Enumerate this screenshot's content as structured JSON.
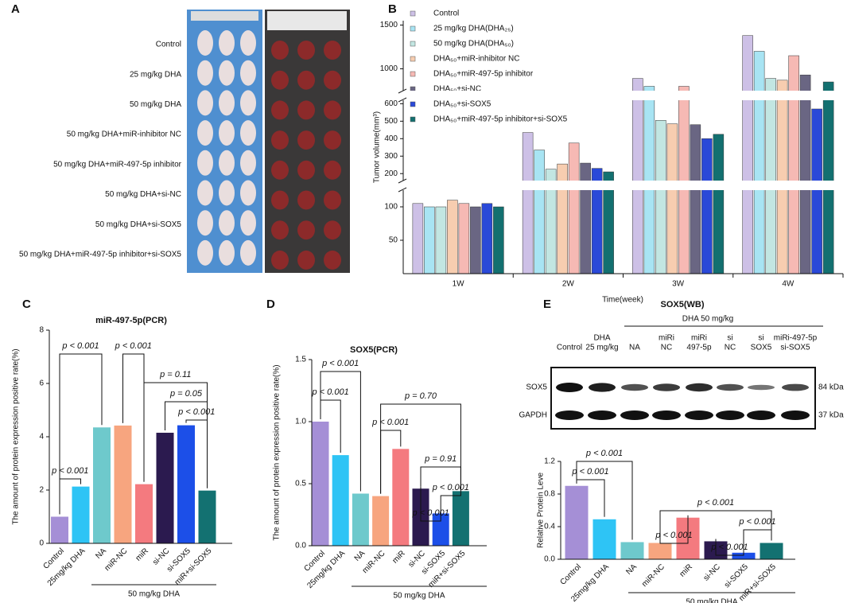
{
  "panel_labels": [
    "A",
    "B",
    "C",
    "D",
    "E"
  ],
  "photo": {
    "rows": [
      "Control",
      "25 mg/kg DHA",
      "50 mg/kg DHA",
      "50 mg/kg DHA+miR-inhibitor NC",
      "50 mg/kg DHA+miR-497-5p inhibitor",
      "50 mg/kg DHA+si-NC",
      "50 mg/kg DHA+si-SOX5",
      "50 mg/kg DHA+miR-497-5p inhibitor+si-SOX5"
    ]
  },
  "chart_data": [
    {
      "type": "grouped_bar",
      "categories": [
        "1W",
        "2W",
        "3W",
        "4W"
      ],
      "xlabel": "Time(week)",
      "ylabel": "Tumor volume(mm³)",
      "ylim": [
        0,
        1550
      ],
      "ylim_segments": [
        [
          0,
          125
        ],
        [
          160,
          620
        ],
        [
          750,
          1550
        ]
      ],
      "yticks": [
        50,
        100,
        200,
        300,
        400,
        500,
        600,
        1000,
        1500
      ],
      "series": [
        {
          "name": "Control",
          "color": "#cdc0e6",
          "values": [
            105,
            435,
            890,
            1380
          ]
        },
        {
          "name": "25 mg/kg DHA(DHA₂₅)",
          "color": "#a8e4f3",
          "values": [
            100,
            335,
            800,
            1200
          ]
        },
        {
          "name": "50 mg/kg DHA(DHA₅₀)",
          "color": "#c2e6e2",
          "values": [
            100,
            225,
            505,
            890
          ]
        },
        {
          "name": "DHA₅₀+miR-inhibitor NC",
          "color": "#f7cdb0",
          "values": [
            110,
            255,
            485,
            870
          ]
        },
        {
          "name": "DHA₅₀+miR-497-5p inhibitor",
          "color": "#f6b9b4",
          "values": [
            105,
            375,
            800,
            1150
          ]
        },
        {
          "name": "DHA₅₀+si-NC",
          "color": "#6a6683",
          "values": [
            100,
            260,
            480,
            930
          ]
        },
        {
          "name": "DHA₅₀+si-SOX5",
          "color": "#2a49d8",
          "values": [
            105,
            230,
            400,
            570
          ]
        },
        {
          "name": "DHA₅₀+miR-497-5p inhibitor+si-SOX5",
          "color": "#137070",
          "values": [
            100,
            210,
            425,
            850
          ]
        }
      ]
    },
    {
      "type": "bar",
      "title": "miR-497-5p(PCR)",
      "ylabel": "The amount of protein expression positive rate(%)",
      "categories": [
        "Control",
        "25mg/kg DHA",
        "NA",
        "miR-NC",
        "miR",
        "si-NC",
        "si-SOX5",
        "miR+si-SOX5"
      ],
      "group_label": "50 mg/kg DHA",
      "colors": [
        "#a58fd6",
        "#2ec4f5",
        "#6ec9cc",
        "#f7a57f",
        "#f47a7f",
        "#2b1a4f",
        "#1c4fe8",
        "#137171"
      ],
      "values": [
        1.0,
        2.13,
        4.35,
        4.42,
        2.22,
        4.15,
        4.43,
        1.98
      ],
      "ylim": [
        0,
        8
      ],
      "yticks": [
        0,
        2,
        4,
        6,
        8
      ],
      "annotations": [
        "p < 0.001",
        "p < 0.001",
        "p < 0.001",
        "p = 0.11",
        "p = 0.05",
        "p < 0.001"
      ]
    },
    {
      "type": "bar",
      "title": "SOX5(PCR)",
      "ylabel": "The amount of protein expression positive rate(%)",
      "categories": [
        "Control",
        "25mg/kg DHA",
        "NA",
        "miR-NC",
        "miR",
        "si-NC",
        "si-SOX5",
        "miR+si-SOX5"
      ],
      "group_label": "50 mg/kg DHA",
      "colors": [
        "#a58fd6",
        "#2ec4f5",
        "#6ec9cc",
        "#f7a57f",
        "#f47a7f",
        "#2b1a4f",
        "#1c4fe8",
        "#137171"
      ],
      "values": [
        1.0,
        0.73,
        0.42,
        0.4,
        0.78,
        0.46,
        0.26,
        0.44
      ],
      "ylim": [
        0,
        1.5
      ],
      "yticks": [
        {
          "value": 0,
          "label": "0.0"
        },
        0.5,
        {
          "value": 1,
          "label": "1.0"
        },
        1.5
      ],
      "annotations": [
        "p < 0.001",
        "p < 0.001",
        "p = 0.70",
        "p < 0.001",
        "p = 0.91",
        "p < 0.001",
        "p < 0.001"
      ]
    },
    {
      "type": "bar",
      "ylabel": "Relative Protein Leve",
      "categories": [
        "Control",
        "25mg/kg DHA",
        "NA",
        "miR-NC",
        "miR",
        "si-NC",
        "si-SOX5",
        "miR+si-SOX5"
      ],
      "group_label": "50 mg/kg DHA",
      "colors": [
        "#a58fd6",
        "#2ec4f5",
        "#6ec9cc",
        "#f7a57f",
        "#f47a7f",
        "#2b1a4f",
        "#1c4fe8",
        "#137171"
      ],
      "values": [
        0.9,
        0.49,
        0.21,
        0.2,
        0.51,
        0.22,
        0.08,
        0.2
      ],
      "ylim": [
        0,
        1.2
      ],
      "yticks": [
        {
          "value": 0,
          "label": "0.0"
        },
        0.4,
        0.8,
        1.2
      ],
      "annotations": [
        "p < 0.001",
        "p < 0.001",
        "p < 0.001",
        "p < 0.001",
        "p < 0.001",
        "p < 0.001"
      ]
    }
  ],
  "blot": {
    "title": "SOX5(WB)",
    "group": "DHA  50 mg/kg",
    "lanes": [
      [
        "Control"
      ],
      [
        "DHA",
        "25 mg/kg"
      ],
      [
        "NA"
      ],
      [
        "miRi",
        "NC"
      ],
      [
        "miRi",
        "497-5p"
      ],
      [
        "si",
        "NC"
      ],
      [
        "si",
        "SOX5"
      ],
      [
        "miRi-497-5p",
        "si-SOX5"
      ]
    ],
    "bands": [
      "SOX5",
      "GAPDH"
    ],
    "sizes": [
      "84 kDa",
      "37 kDa"
    ]
  }
}
